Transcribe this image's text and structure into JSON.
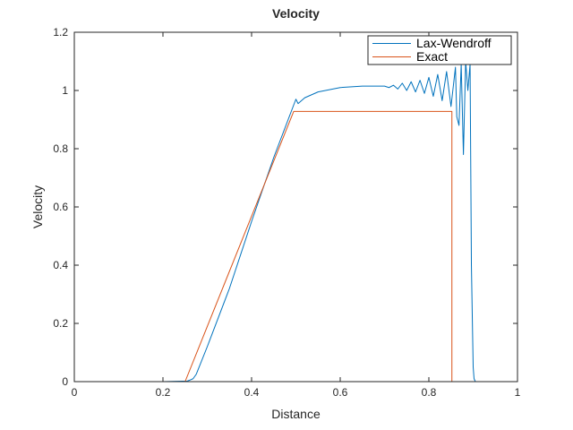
{
  "chart_data": {
    "type": "line",
    "title": "Velocity",
    "xlabel": "Distance",
    "ylabel": "Velocity",
    "xlim": [
      0,
      1
    ],
    "ylim": [
      0,
      1.2
    ],
    "xticks": [
      0,
      0.2,
      0.4,
      0.6,
      0.8,
      1
    ],
    "xtick_labels": [
      "0",
      "0.2",
      "0.4",
      "0.6",
      "0.8",
      "1"
    ],
    "yticks": [
      0,
      0.2,
      0.4,
      0.6,
      0.8,
      1,
      1.2
    ],
    "ytick_labels": [
      "0",
      "0.2",
      "0.4",
      "0.6",
      "0.8",
      "1",
      "1.2"
    ],
    "grid": false,
    "legend_position": "top-right",
    "series": [
      {
        "name": "Lax-Wendroff",
        "color": "#0072bd",
        "x": [
          0,
          0.2,
          0.255,
          0.262,
          0.268,
          0.275,
          0.3,
          0.35,
          0.4,
          0.45,
          0.49,
          0.5,
          0.505,
          0.52,
          0.55,
          0.6,
          0.65,
          0.7,
          0.71,
          0.72,
          0.73,
          0.74,
          0.75,
          0.76,
          0.77,
          0.78,
          0.79,
          0.8,
          0.81,
          0.82,
          0.83,
          0.84,
          0.85,
          0.86,
          0.863,
          0.868,
          0.873,
          0.878,
          0.883,
          0.888,
          0.893,
          0.896,
          0.9,
          0.902,
          0.905,
          1
        ],
        "y": [
          0,
          0,
          0.002,
          0.006,
          0.01,
          0.025,
          0.12,
          0.32,
          0.55,
          0.77,
          0.93,
          0.97,
          0.955,
          0.975,
          0.995,
          1.01,
          1.015,
          1.015,
          1.01,
          1.018,
          1.005,
          1.025,
          1.0,
          1.03,
          0.995,
          1.035,
          0.99,
          1.045,
          0.98,
          1.055,
          0.965,
          1.065,
          0.945,
          1.08,
          0.91,
          0.88,
          1.09,
          0.78,
          1.1,
          1.0,
          1.09,
          0.4,
          0.05,
          0.01,
          0.0,
          0
        ]
      },
      {
        "name": "Exact",
        "color": "#d95319",
        "x": [
          0,
          0.25,
          0.495,
          0.852,
          0.852,
          1
        ],
        "y": [
          0,
          0,
          0.928,
          0.928,
          0,
          0
        ]
      }
    ]
  }
}
